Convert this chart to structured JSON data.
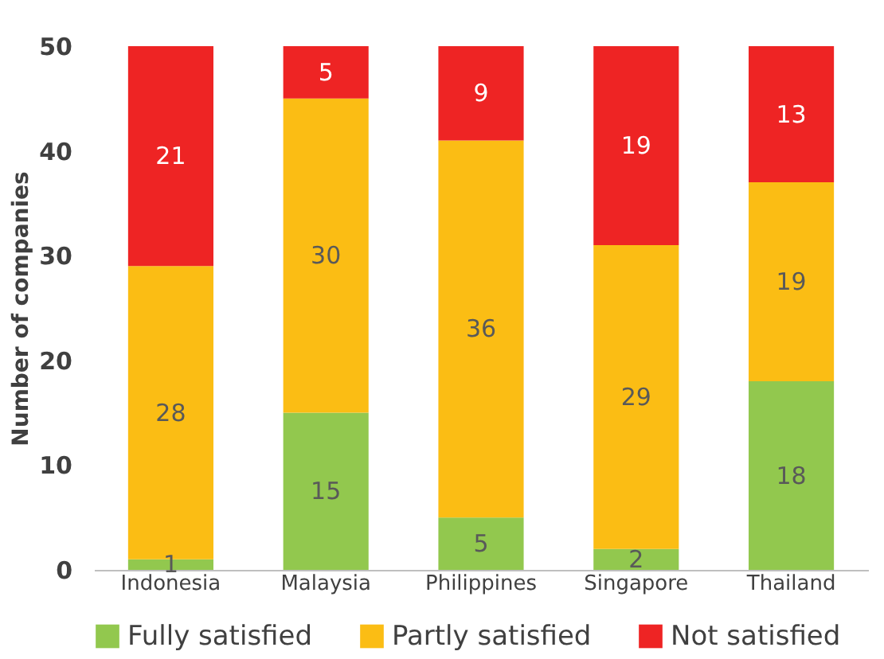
{
  "chart_data": {
    "type": "bar",
    "stacked": true,
    "ylabel": "Number of companies",
    "categories": [
      "Indonesia",
      "Malaysia",
      "Philippines",
      "Singapore",
      "Thailand"
    ],
    "series": [
      {
        "name": "Fully satisfied",
        "color": "#92c84e",
        "values": [
          1,
          15,
          5,
          2,
          18
        ]
      },
      {
        "name": "Partly satisfied",
        "color": "#fbbd14",
        "values": [
          28,
          30,
          36,
          29,
          19
        ]
      },
      {
        "name": "Not satisfied",
        "color": "#ee2424",
        "values": [
          21,
          5,
          9,
          19,
          13
        ]
      }
    ],
    "ylim": [
      0,
      50
    ],
    "yticks": [
      0,
      10,
      20,
      30,
      40,
      50
    ],
    "grid": false,
    "legend": "bottom",
    "data_labels": true
  }
}
